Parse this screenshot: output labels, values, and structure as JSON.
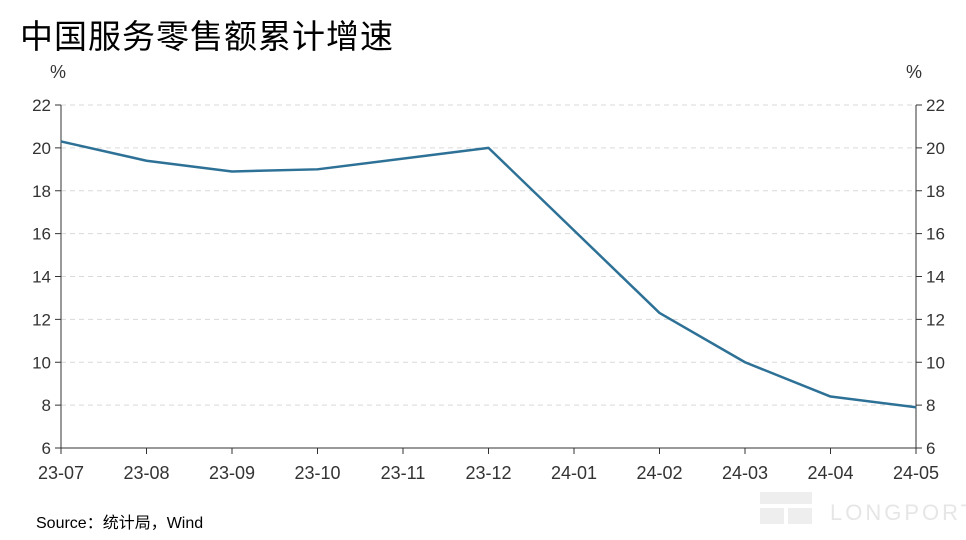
{
  "chart_data": {
    "type": "line",
    "title": "中国服务零售额累计增速",
    "unit_left": "%",
    "unit_right": "%",
    "categories": [
      "23-07",
      "23-08",
      "23-09",
      "23-10",
      "23-11",
      "23-12",
      "24-01",
      "24-02",
      "24-03",
      "24-04",
      "24-05"
    ],
    "series": [
      {
        "x": [
          "23-07",
          "23-08",
          "23-09",
          "23-10",
          "23-12",
          "24-02",
          "24-03",
          "24-04",
          "24-05"
        ],
        "values": [
          20.3,
          19.4,
          18.9,
          19.0,
          20.0,
          12.3,
          10.0,
          8.4,
          7.9
        ],
        "color": "#2e7196"
      }
    ],
    "ylim": [
      6,
      22
    ],
    "yticks": [
      6,
      8,
      10,
      12,
      14,
      16,
      18,
      20,
      22
    ],
    "grid": true,
    "legend": "none",
    "source": "Source：统计局，Wind"
  },
  "watermark": "LONGPORT"
}
